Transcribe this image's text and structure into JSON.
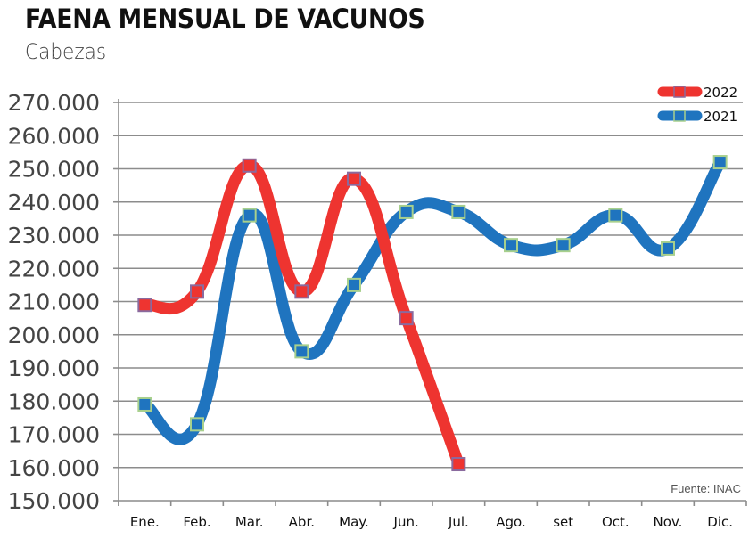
{
  "header": {
    "title": "FAENA MENSUAL DE VACUNOS",
    "subtitle": "Cabezas"
  },
  "source_note": "Fuente: INAC",
  "colors": {
    "series_2022": "#ee3430",
    "series_2022_marker_border": "#8a6a9e",
    "series_2021": "#1f74bf",
    "series_2021_marker_border": "#a8d08d",
    "grid": "#8c8c8c"
  },
  "chart_data": {
    "type": "line",
    "title": "FAENA MENSUAL DE VACUNOS",
    "subtitle": "Cabezas",
    "xlabel": "",
    "ylabel": "Cabezas",
    "categories": [
      "Ene.",
      "Feb.",
      "Mar.",
      "Abr.",
      "May.",
      "Jun.",
      "Jul.",
      "Ago.",
      "set",
      "Oct.",
      "Nov.",
      "Dic."
    ],
    "y_ticks": [
      "150.000",
      "160.000",
      "170.000",
      "180.000",
      "190.000",
      "200.000",
      "210.000",
      "220.000",
      "230.000",
      "240.000",
      "250.000",
      "260.000",
      "270.000"
    ],
    "ylim": [
      150000,
      270000
    ],
    "grid": true,
    "smooth": true,
    "legend_position": "top-right",
    "series": [
      {
        "name": "2022",
        "values": [
          209000,
          213000,
          251000,
          213000,
          247000,
          205000,
          161000
        ]
      },
      {
        "name": "2021",
        "values": [
          179000,
          173000,
          236000,
          195000,
          215000,
          237000,
          237000,
          227000,
          227000,
          236000,
          226000,
          252000
        ]
      }
    ],
    "annotations": [
      "Fuente: INAC"
    ]
  }
}
